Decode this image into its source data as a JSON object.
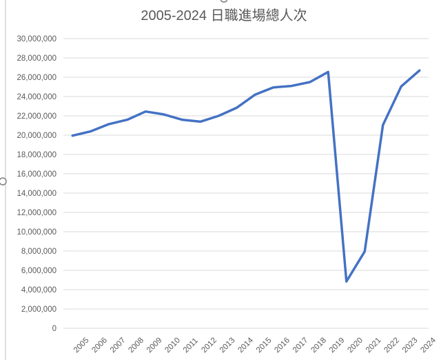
{
  "chart_data": {
    "type": "line",
    "title": "2005-2024 日職進場總人次",
    "xlabel": "",
    "ylabel": "",
    "x": [
      "2005",
      "2006",
      "2007",
      "2008",
      "2009",
      "2010",
      "2011",
      "2012",
      "2013",
      "2014",
      "2015",
      "2016",
      "2017",
      "2018",
      "2019",
      "2020",
      "2021",
      "2022",
      "2023",
      "2024"
    ],
    "series": [
      {
        "values": [
          19950000,
          20400000,
          21150000,
          21600000,
          22450000,
          22150000,
          21600000,
          21400000,
          22000000,
          22850000,
          24200000,
          24950000,
          25100000,
          25500000,
          26550000,
          4850000,
          7950000,
          21050000,
          25050000,
          26700000
        ],
        "color": "#4472c4"
      }
    ],
    "ylim": [
      0,
      30000000
    ],
    "yticks": [
      "0",
      "2,000,000",
      "4,000,000",
      "6,000,000",
      "8,000,000",
      "10,000,000",
      "12,000,000",
      "14,000,000",
      "16,000,000",
      "18,000,000",
      "20,000,000",
      "22,000,000",
      "24,000,000",
      "26,000,000",
      "28,000,000",
      "30,000,000"
    ],
    "grid": true,
    "legend": "none"
  }
}
